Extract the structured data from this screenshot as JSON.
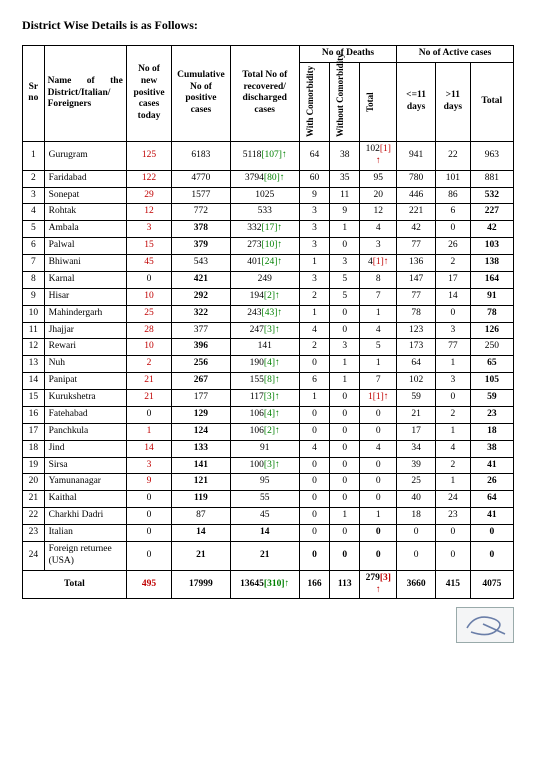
{
  "title": "District Wise Details is as Follows:",
  "colors": {
    "red": "#c00000",
    "green": "#008000",
    "black": "#000000",
    "border": "#000000",
    "sig_border": "#99aaaa",
    "sig_bg": "#f4f5f6",
    "sig_stroke": "#6a7ea8"
  },
  "headers": {
    "sr": "Sr no",
    "name": "Name of the District/Italian/ Foreigners",
    "new": "No of new positive cases today",
    "cum": "Cumulative No of positive cases",
    "rec": "Total No of recovered/ discharged cases",
    "deaths_group": "No of Deaths",
    "deaths_with": "With Comorbidity",
    "deaths_without": "Without Comorbidity",
    "deaths_total": "Total",
    "active_group": "No of Active cases",
    "active_le11": "<=11 days",
    "active_gt11": ">11 days",
    "active_total": "Total"
  },
  "arrows": {
    "up_green": "↑",
    "up_red": "↑"
  },
  "rows": [
    {
      "sr": 1,
      "name": "Gurugram",
      "new": "125",
      "new_red": true,
      "cum": "6183",
      "rec": "5118",
      "rec_suffix": "[107]",
      "rec_arrow": "g",
      "d1": "64",
      "d2": "38",
      "d3": "102",
      "d3_suffix": "[1]",
      "d3_arrow": "r",
      "a1": "941",
      "a2": "22",
      "a3": "963"
    },
    {
      "sr": 2,
      "name": "Faridabad",
      "new": "122",
      "new_red": true,
      "cum": "4770",
      "rec": "3794",
      "rec_suffix": "[80]",
      "rec_arrow": "g",
      "d1": "60",
      "d2": "35",
      "d3": "95",
      "a1": "780",
      "a2": "101",
      "a3": "881"
    },
    {
      "sr": 3,
      "name": "Sonepat",
      "new": "29",
      "new_red": true,
      "cum": "1577",
      "rec": "1025",
      "d1": "9",
      "d2": "11",
      "d3": "20",
      "a1": "446",
      "a2": "86",
      "a3": "532",
      "a3_bold": true
    },
    {
      "sr": 4,
      "name": "Rohtak",
      "new": "12",
      "new_red": true,
      "cum": "772",
      "rec": "533",
      "d1": "3",
      "d2": "9",
      "d3": "12",
      "a1": "221",
      "a2": "6",
      "a3": "227",
      "a3_bold": true
    },
    {
      "sr": 5,
      "name": "Ambala",
      "new": "3",
      "new_red": true,
      "cum": "378",
      "cum_bold": true,
      "rec": "332",
      "rec_suffix": "[17]",
      "rec_arrow": "g",
      "d1": "3",
      "d2": "1",
      "d3": "4",
      "a1": "42",
      "a2": "0",
      "a3": "42",
      "a3_bold": true
    },
    {
      "sr": 6,
      "name": "Palwal",
      "new": "15",
      "new_red": true,
      "cum": "379",
      "cum_bold": true,
      "rec": "273",
      "rec_suffix": "[10]",
      "rec_arrow": "g",
      "d1": "3",
      "d2": "0",
      "d3": "3",
      "a1": "77",
      "a2": "26",
      "a3": "103",
      "a3_bold": true
    },
    {
      "sr": 7,
      "name": "Bhiwani",
      "new": "45",
      "new_red": true,
      "cum": "543",
      "rec": "401",
      "rec_suffix": "[24]",
      "rec_arrow": "g",
      "d1": "1",
      "d2": "3",
      "d3": "4",
      "d3_suffix": "[1]",
      "d3_arrow": "r",
      "a1": "136",
      "a2": "2",
      "a3": "138",
      "a3_bold": true
    },
    {
      "sr": 8,
      "name": "Karnal",
      "new": "0",
      "cum": "421",
      "cum_bold": true,
      "rec": "249",
      "d1": "3",
      "d2": "5",
      "d3": "8",
      "a1": "147",
      "a2": "17",
      "a3": "164",
      "a3_bold": true
    },
    {
      "sr": 9,
      "name": "Hisar",
      "new": "10",
      "new_red": true,
      "cum": "292",
      "cum_bold": true,
      "rec": "194",
      "rec_suffix": "[2]",
      "rec_arrow": "g",
      "d1": "2",
      "d2": "5",
      "d3": "7",
      "a1": "77",
      "a2": "14",
      "a3": "91",
      "a3_bold": true
    },
    {
      "sr": 10,
      "name": "Mahindergarh",
      "new": "25",
      "new_red": true,
      "cum": "322",
      "cum_bold": true,
      "rec": "243",
      "rec_suffix": "[43]",
      "rec_arrow": "g",
      "d1": "1",
      "d2": "0",
      "d3": "1",
      "a1": "78",
      "a2": "0",
      "a3": "78",
      "a3_bold": true
    },
    {
      "sr": 11,
      "name": "Jhajjar",
      "new": "28",
      "new_red": true,
      "cum": "377",
      "rec": "247",
      "rec_suffix": "[3]",
      "rec_arrow": "g",
      "d1": "4",
      "d2": "0",
      "d3": "4",
      "a1": "123",
      "a2": "3",
      "a3": "126",
      "a3_bold": true
    },
    {
      "sr": 12,
      "name": "Rewari",
      "new": "10",
      "new_red": true,
      "cum": "396",
      "cum_bold": true,
      "rec": "141",
      "d1": "2",
      "d2": "3",
      "d3": "5",
      "a1": "173",
      "a2": "77",
      "a3": "250"
    },
    {
      "sr": 13,
      "name": "Nuh",
      "new": "2",
      "new_red": true,
      "cum": "256",
      "cum_bold": true,
      "rec": "190",
      "rec_suffix": "[4]",
      "rec_arrow": "g",
      "d1": "0",
      "d2": "1",
      "d3": "1",
      "a1": "64",
      "a2": "1",
      "a3": "65",
      "a3_bold": true
    },
    {
      "sr": 14,
      "name": "Panipat",
      "new": "21",
      "new_red": true,
      "cum": "267",
      "cum_bold": true,
      "rec": "155",
      "rec_suffix": "[8]",
      "rec_arrow": "g",
      "d1": "6",
      "d2": "1",
      "d3": "7",
      "a1": "102",
      "a2": "3",
      "a3": "105",
      "a3_bold": true
    },
    {
      "sr": 15,
      "name": "Kurukshetra",
      "new": "21",
      "new_red": true,
      "cum": "177",
      "rec": "117",
      "rec_suffix": "[3]",
      "rec_arrow": "g",
      "d1": "1",
      "d2": "0",
      "d3": "1",
      "d3_suffix": "[1]",
      "d3_arrow": "r",
      "d3_red": true,
      "a1": "59",
      "a2": "0",
      "a3": "59",
      "a3_bold": true
    },
    {
      "sr": 16,
      "name": "Fatehabad",
      "new": "0",
      "cum": "129",
      "cum_bold": true,
      "rec": "106",
      "rec_suffix": "[4]",
      "rec_arrow": "g",
      "d1": "0",
      "d2": "0",
      "d3": "0",
      "a1": "21",
      "a2": "2",
      "a3": "23",
      "a3_bold": true
    },
    {
      "sr": 17,
      "name": "Panchkula",
      "new": "1",
      "new_red": true,
      "cum": "124",
      "cum_bold": true,
      "rec": "106",
      "rec_suffix": "[2]",
      "rec_arrow": "g",
      "d1": "0",
      "d2": "0",
      "d3": "0",
      "a1": "17",
      "a2": "1",
      "a3": "18",
      "a3_bold": true
    },
    {
      "sr": 18,
      "name": "Jind",
      "new": "14",
      "new_red": true,
      "cum": "133",
      "cum_bold": true,
      "rec": "91",
      "d1": "4",
      "d2": "0",
      "d3": "4",
      "a1": "34",
      "a2": "4",
      "a3": "38",
      "a3_bold": true
    },
    {
      "sr": 19,
      "name": "Sirsa",
      "new": "3",
      "new_red": true,
      "cum": "141",
      "cum_bold": true,
      "rec": "100",
      "rec_suffix": "[3]",
      "rec_arrow": "g",
      "d1": "0",
      "d2": "0",
      "d3": "0",
      "a1": "39",
      "a2": "2",
      "a3": "41",
      "a3_bold": true
    },
    {
      "sr": 20,
      "name": "Yamunanagar",
      "new": "9",
      "new_red": true,
      "cum": "121",
      "cum_bold": true,
      "rec": "95",
      "d1": "0",
      "d2": "0",
      "d3": "0",
      "a1": "25",
      "a2": "1",
      "a3": "26",
      "a3_bold": true
    },
    {
      "sr": 21,
      "name": "Kaithal",
      "new": "0",
      "cum": "119",
      "cum_bold": true,
      "rec": "55",
      "d1": "0",
      "d2": "0",
      "d3": "0",
      "a1": "40",
      "a2": "24",
      "a3": "64",
      "a3_bold": true
    },
    {
      "sr": 22,
      "name": "Charkhi Dadri",
      "new": "0",
      "cum": "87",
      "rec": "45",
      "d1": "0",
      "d2": "1",
      "d3": "1",
      "a1": "18",
      "a2": "23",
      "a3": "41",
      "a3_bold": true
    },
    {
      "sr": 23,
      "name": "Italian",
      "new": "0",
      "cum": "14",
      "cum_bold": true,
      "rec": "14",
      "rec_bold": true,
      "d1": "0",
      "d2": "0",
      "d3": "0",
      "d3_bold": true,
      "a1": "0",
      "a2": "0",
      "a3": "0",
      "a3_bold": true
    },
    {
      "sr": 24,
      "name": "Foreign returnee (USA)",
      "new": "0",
      "cum": "21",
      "cum_bold": true,
      "rec": "21",
      "rec_bold": true,
      "d1": "0",
      "d1_bold": true,
      "d2": "0",
      "d2_bold": true,
      "d3": "0",
      "d3_bold": true,
      "a1": "0",
      "a2": "0",
      "a3": "0",
      "a3_bold": true
    }
  ],
  "total": {
    "label": "Total",
    "new": "495",
    "cum": "17999",
    "rec": "13645",
    "rec_suffix": "[310]",
    "rec_arrow": "g",
    "d1": "166",
    "d2": "113",
    "d3": "279",
    "d3_suffix": "[3]",
    "d3_arrow": "r",
    "a1": "3660",
    "a2": "415",
    "a3": "4075"
  }
}
